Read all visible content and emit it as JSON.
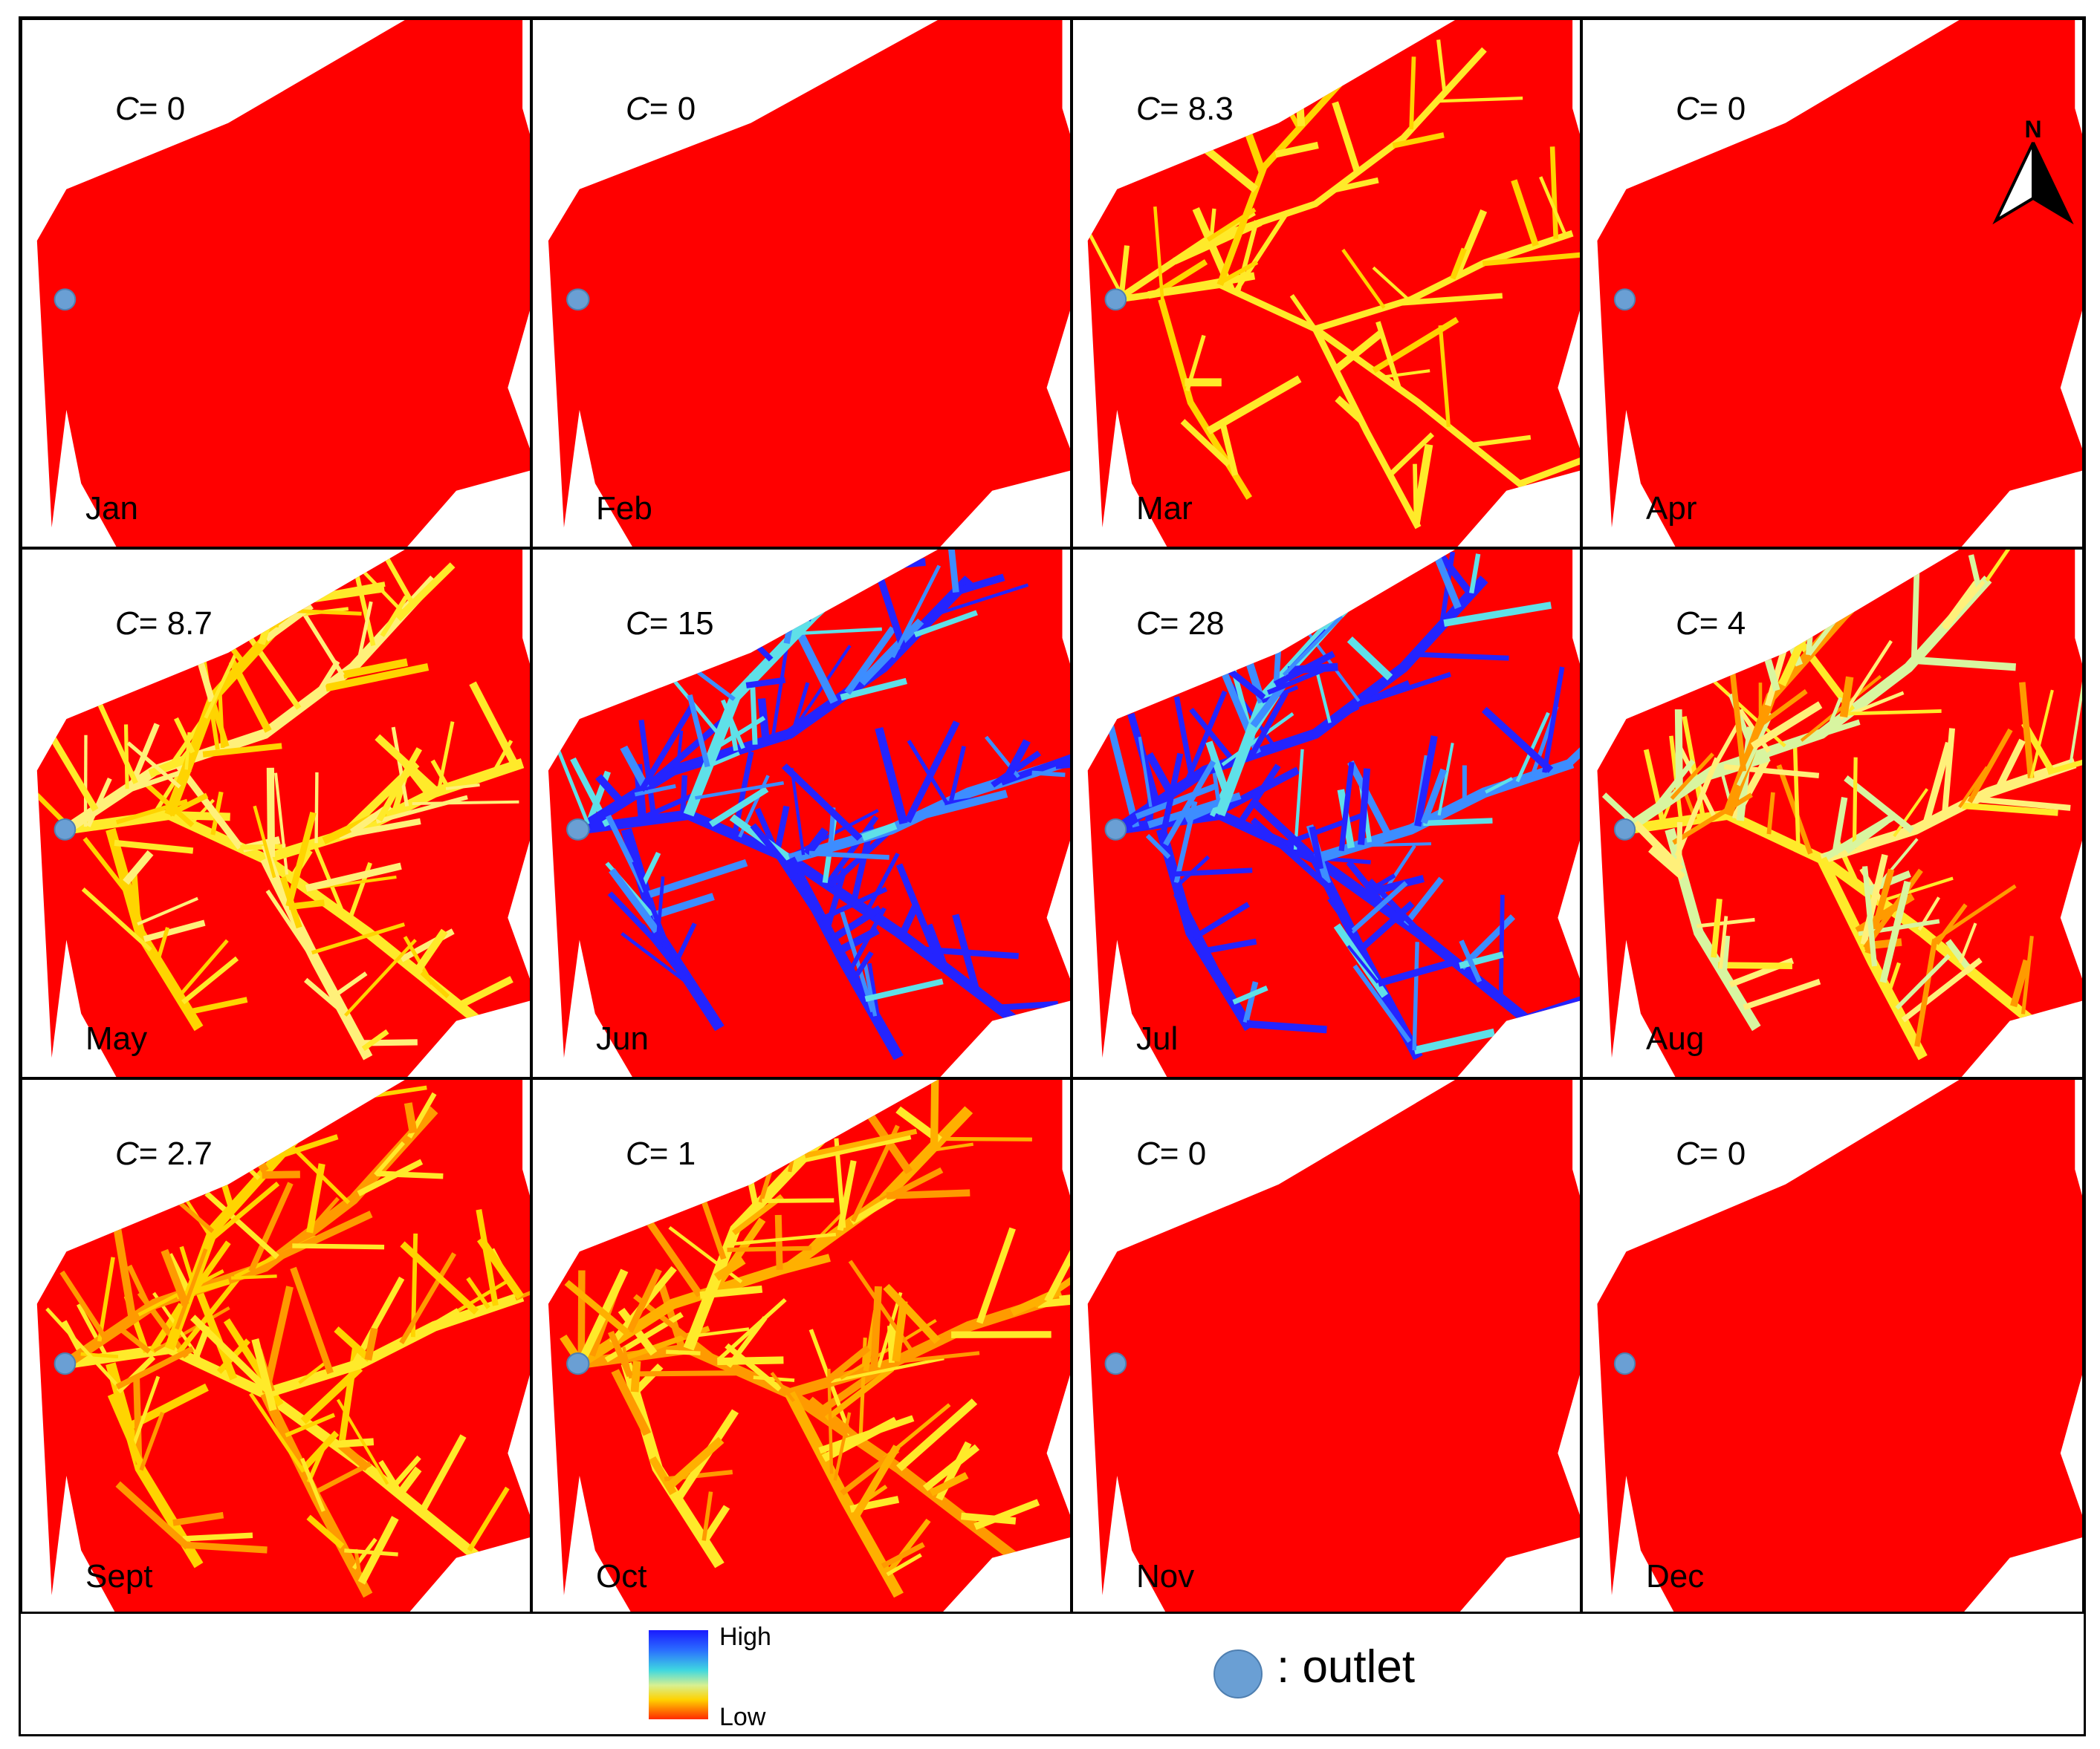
{
  "panels": [
    {
      "month": "Jan",
      "c_label": "C",
      "c_value": "= 0",
      "pattern": "none"
    },
    {
      "month": "Feb",
      "c_label": "C",
      "c_value": "= 0",
      "pattern": "none"
    },
    {
      "month": "Mar",
      "c_label": "C",
      "c_value": "= 8.3",
      "pattern": "yellow"
    },
    {
      "month": "Apr",
      "c_label": "C",
      "c_value": "= 0",
      "pattern": "none"
    },
    {
      "month": "May",
      "c_label": "C",
      "c_value": "= 8.7",
      "pattern": "yellow-dense"
    },
    {
      "month": "Jun",
      "c_label": "C",
      "c_value": "= 15",
      "pattern": "blue"
    },
    {
      "month": "Jul",
      "c_label": "C",
      "c_value": "= 28",
      "pattern": "blue"
    },
    {
      "month": "Aug",
      "c_label": "C",
      "c_value": "= 4",
      "pattern": "yellow-green"
    },
    {
      "month": "Sept",
      "c_label": "C",
      "c_value": "= 2.7",
      "pattern": "yellow-orange"
    },
    {
      "month": "Oct",
      "c_label": "C",
      "c_value": "= 1",
      "pattern": "orange"
    },
    {
      "month": "Nov",
      "c_label": "C",
      "c_value": "= 0",
      "pattern": "none"
    },
    {
      "month": "Dec",
      "c_label": "C",
      "c_value": "= 0",
      "pattern": "none"
    }
  ],
  "legend": {
    "ramp_high": "High",
    "ramp_low": "Low",
    "outlet_label": ": outlet"
  },
  "north_arrow": {
    "label": "N"
  },
  "colors": {
    "basin": "#ff0000",
    "yellow": "#ffea2a",
    "orange": "#ff9a00",
    "cyan": "#5fe0e8",
    "blue": "#2424ff",
    "pale": "#d8f5a0",
    "outlet": "#6a9fd4"
  }
}
